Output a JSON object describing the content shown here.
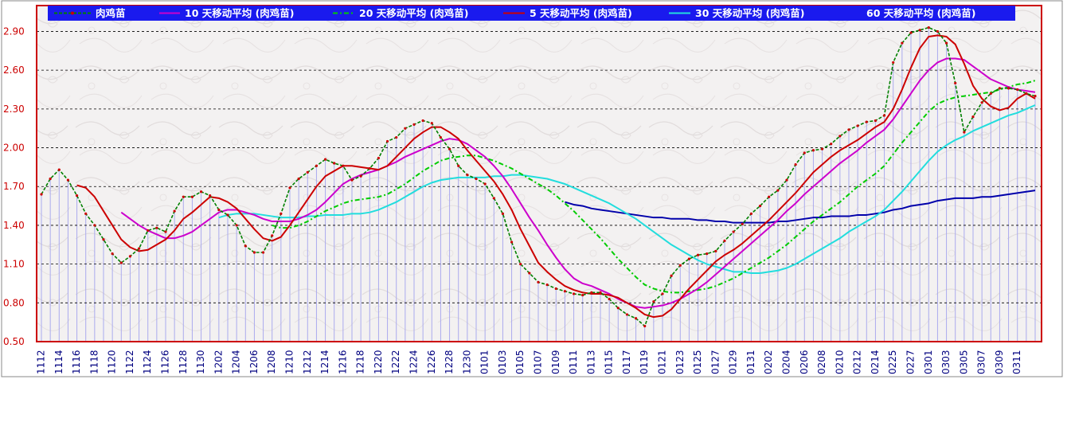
{
  "chart_data": {
    "type": "line",
    "ylim": [
      0.5,
      3.1
    ],
    "yticks": [
      "0.50",
      "0.80",
      "1.10",
      "1.40",
      "1.70",
      "2.00",
      "2.30",
      "2.60",
      "2.90"
    ],
    "grid": true,
    "legend_placement": "top",
    "categories": [
      "1112",
      "1113",
      "1114",
      "1115",
      "1116",
      "1117",
      "1118",
      "1119",
      "1120",
      "1121",
      "1122",
      "1123",
      "1124",
      "1125",
      "1126",
      "1127",
      "1128",
      "1129",
      "1130",
      "1201",
      "1202",
      "1203",
      "1204",
      "1205",
      "1206",
      "1207",
      "1208",
      "1209",
      "1210",
      "1211",
      "1212",
      "1213",
      "1214",
      "1215",
      "1216",
      "1217",
      "1218",
      "1219",
      "1220",
      "1221",
      "1222",
      "1223",
      "1224",
      "1225",
      "1226",
      "1227",
      "1228",
      "1229",
      "1230",
      "1231",
      "0101",
      "0102",
      "0103",
      "0104",
      "0105",
      "0106",
      "0107",
      "0108",
      "0109",
      "0110",
      "0111",
      "0112",
      "0113",
      "0114",
      "0115",
      "0116",
      "0117",
      "0118",
      "0119",
      "0120",
      "0121",
      "0122",
      "0123",
      "0124",
      "0125",
      "0126",
      "0127",
      "0128",
      "0129",
      "0130",
      "0131",
      "0201",
      "0202",
      "0203",
      "0204",
      "0205",
      "0206",
      "0207",
      "0208",
      "0209",
      "0210",
      "0211",
      "0212",
      "0213",
      "0214",
      "0224",
      "0225",
      "0226",
      "0227",
      "0228",
      "0301",
      "0302",
      "0303",
      "0304",
      "0305",
      "0306",
      "0307",
      "0308",
      "0309",
      "0310",
      "0311",
      "0312",
      "0313"
    ],
    "xtick_labels": [
      "1112",
      "1114",
      "1116",
      "1118",
      "1120",
      "1122",
      "1124",
      "1126",
      "1128",
      "1130",
      "1202",
      "1204",
      "1206",
      "1208",
      "1210",
      "1212",
      "1214",
      "1216",
      "1218",
      "1220",
      "1222",
      "1224",
      "1226",
      "1228",
      "1230",
      "0101",
      "0103",
      "0105",
      "0107",
      "0109",
      "0111",
      "0113",
      "0115",
      "0117",
      "0119",
      "0121",
      "0123",
      "0125",
      "0127",
      "0129",
      "0131",
      "0202",
      "0204",
      "0206",
      "0208",
      "0210",
      "0212",
      "0214",
      "0225",
      "0227",
      "0301",
      "0303",
      "0305",
      "0307",
      "0309",
      "0311"
    ],
    "series": [
      {
        "name": "肉鸡苗",
        "color": "#008000",
        "marker": true,
        "dash": "4,2",
        "values": [
          1.64,
          1.76,
          1.83,
          1.75,
          1.63,
          1.49,
          1.4,
          1.29,
          1.18,
          1.11,
          1.16,
          1.22,
          1.36,
          1.38,
          1.35,
          1.51,
          1.62,
          1.62,
          1.66,
          1.63,
          1.52,
          1.48,
          1.4,
          1.24,
          1.19,
          1.19,
          1.32,
          1.49,
          1.69,
          1.76,
          1.81,
          1.86,
          1.91,
          1.88,
          1.86,
          1.75,
          1.78,
          1.84,
          1.92,
          2.05,
          2.08,
          2.15,
          2.18,
          2.21,
          2.19,
          2.08,
          1.99,
          1.86,
          1.79,
          1.76,
          1.72,
          1.61,
          1.49,
          1.27,
          1.1,
          1.03,
          0.96,
          0.94,
          0.91,
          0.89,
          0.87,
          0.86,
          0.88,
          0.88,
          0.83,
          0.76,
          0.71,
          0.68,
          0.62,
          0.81,
          0.87,
          1.01,
          1.09,
          1.14,
          1.17,
          1.18,
          1.2,
          1.28,
          1.35,
          1.41,
          1.49,
          1.55,
          1.62,
          1.67,
          1.75,
          1.87,
          1.96,
          1.98,
          1.99,
          2.03,
          2.09,
          2.14,
          2.17,
          2.2,
          2.21,
          2.25,
          2.66,
          2.81,
          2.89,
          2.91,
          2.93,
          2.9,
          2.81,
          2.5,
          2.12,
          2.24,
          2.35,
          2.42,
          2.46,
          2.46,
          2.45,
          2.42,
          2.4
        ]
      },
      {
        "name": "10 天移动平均 (肉鸡苗)",
        "color": "#cc00cc",
        "values": [
          null,
          null,
          null,
          null,
          null,
          null,
          null,
          null,
          null,
          1.5,
          1.45,
          1.4,
          1.36,
          1.33,
          1.3,
          1.3,
          1.32,
          1.35,
          1.4,
          1.45,
          1.5,
          1.52,
          1.52,
          1.5,
          1.48,
          1.45,
          1.43,
          1.43,
          1.43,
          1.45,
          1.48,
          1.52,
          1.58,
          1.65,
          1.72,
          1.76,
          1.79,
          1.81,
          1.83,
          1.86,
          1.89,
          1.93,
          1.96,
          1.99,
          2.02,
          2.05,
          2.07,
          2.06,
          2.03,
          1.98,
          1.93,
          1.86,
          1.78,
          1.68,
          1.57,
          1.46,
          1.36,
          1.25,
          1.15,
          1.06,
          0.99,
          0.95,
          0.93,
          0.9,
          0.87,
          0.83,
          0.8,
          0.77,
          0.76,
          0.77,
          0.78,
          0.8,
          0.83,
          0.87,
          0.91,
          0.96,
          1.02,
          1.08,
          1.14,
          1.2,
          1.26,
          1.32,
          1.38,
          1.44,
          1.51,
          1.57,
          1.64,
          1.7,
          1.76,
          1.82,
          1.88,
          1.93,
          1.98,
          2.04,
          2.09,
          2.14,
          2.22,
          2.32,
          2.42,
          2.52,
          2.6,
          2.66,
          2.69,
          2.69,
          2.68,
          2.63,
          2.58,
          2.53,
          2.5,
          2.47,
          2.45,
          2.44,
          2.43
        ]
      },
      {
        "name": "20 天移动平均 (肉鸡苗)",
        "color": "#00cc00",
        "dash": "6,3,2,3",
        "values": [
          null,
          null,
          null,
          null,
          null,
          null,
          null,
          null,
          null,
          null,
          null,
          null,
          null,
          null,
          null,
          null,
          null,
          null,
          null,
          null,
          null,
          null,
          null,
          null,
          null,
          null,
          1.4,
          1.38,
          1.38,
          1.4,
          1.43,
          1.47,
          1.51,
          1.54,
          1.57,
          1.59,
          1.6,
          1.61,
          1.62,
          1.64,
          1.68,
          1.72,
          1.77,
          1.82,
          1.86,
          1.9,
          1.92,
          1.93,
          1.94,
          1.94,
          1.92,
          1.9,
          1.87,
          1.84,
          1.8,
          1.76,
          1.72,
          1.68,
          1.63,
          1.57,
          1.51,
          1.44,
          1.37,
          1.3,
          1.22,
          1.14,
          1.07,
          1.0,
          0.94,
          0.91,
          0.89,
          0.88,
          0.88,
          0.89,
          0.9,
          0.91,
          0.93,
          0.96,
          0.99,
          1.03,
          1.07,
          1.11,
          1.15,
          1.2,
          1.25,
          1.31,
          1.37,
          1.43,
          1.48,
          1.53,
          1.58,
          1.64,
          1.7,
          1.75,
          1.8,
          1.86,
          1.95,
          2.04,
          2.12,
          2.2,
          2.28,
          2.34,
          2.37,
          2.39,
          2.4,
          2.41,
          2.42,
          2.43,
          2.45,
          2.47,
          2.49,
          2.5,
          2.52
        ]
      },
      {
        "name": "5 天移动平均 (肉鸡苗)",
        "color": "#cc0000",
        "values": [
          null,
          null,
          null,
          null,
          1.71,
          1.69,
          1.62,
          1.51,
          1.4,
          1.29,
          1.23,
          1.2,
          1.21,
          1.25,
          1.29,
          1.36,
          1.45,
          1.5,
          1.56,
          1.62,
          1.61,
          1.58,
          1.53,
          1.45,
          1.37,
          1.3,
          1.28,
          1.31,
          1.4,
          1.5,
          1.6,
          1.7,
          1.78,
          1.82,
          1.86,
          1.86,
          1.85,
          1.84,
          1.83,
          1.86,
          1.93,
          2.0,
          2.07,
          2.12,
          2.16,
          2.16,
          2.12,
          2.07,
          1.98,
          1.9,
          1.82,
          1.74,
          1.64,
          1.52,
          1.37,
          1.24,
          1.11,
          1.04,
          0.98,
          0.93,
          0.9,
          0.88,
          0.87,
          0.87,
          0.86,
          0.84,
          0.8,
          0.76,
          0.71,
          0.69,
          0.7,
          0.75,
          0.83,
          0.91,
          0.98,
          1.05,
          1.12,
          1.17,
          1.21,
          1.26,
          1.32,
          1.38,
          1.44,
          1.51,
          1.58,
          1.65,
          1.73,
          1.81,
          1.87,
          1.93,
          1.98,
          2.02,
          2.06,
          2.11,
          2.16,
          2.2,
          2.3,
          2.45,
          2.62,
          2.77,
          2.86,
          2.87,
          2.86,
          2.8,
          2.65,
          2.48,
          2.38,
          2.32,
          2.29,
          2.31,
          2.38,
          2.42,
          2.38
        ]
      },
      {
        "name": "30 天移动平均 (肉鸡苗)",
        "color": "#22dddd",
        "values": [
          null,
          null,
          null,
          null,
          null,
          null,
          null,
          null,
          null,
          null,
          null,
          null,
          null,
          null,
          null,
          null,
          null,
          null,
          null,
          null,
          1.46,
          1.48,
          1.49,
          1.49,
          1.49,
          1.48,
          1.47,
          1.46,
          1.46,
          1.46,
          1.47,
          1.47,
          1.48,
          1.48,
          1.48,
          1.49,
          1.49,
          1.5,
          1.52,
          1.55,
          1.58,
          1.62,
          1.66,
          1.7,
          1.73,
          1.75,
          1.76,
          1.77,
          1.77,
          1.77,
          1.77,
          1.78,
          1.78,
          1.79,
          1.79,
          1.78,
          1.77,
          1.76,
          1.74,
          1.72,
          1.69,
          1.66,
          1.63,
          1.6,
          1.57,
          1.53,
          1.49,
          1.45,
          1.4,
          1.35,
          1.3,
          1.25,
          1.21,
          1.17,
          1.13,
          1.1,
          1.08,
          1.06,
          1.04,
          1.04,
          1.03,
          1.03,
          1.04,
          1.05,
          1.07,
          1.1,
          1.14,
          1.18,
          1.22,
          1.26,
          1.3,
          1.35,
          1.39,
          1.43,
          1.47,
          1.52,
          1.59,
          1.66,
          1.74,
          1.82,
          1.9,
          1.97,
          2.02,
          2.06,
          2.09,
          2.13,
          2.16,
          2.19,
          2.22,
          2.25,
          2.27,
          2.3,
          2.33
        ]
      },
      {
        "name": "60 天移动平均 (肉鸡苗)",
        "color": "#0000aa",
        "values": [
          null,
          null,
          null,
          null,
          null,
          null,
          null,
          null,
          null,
          null,
          null,
          null,
          null,
          null,
          null,
          null,
          null,
          null,
          null,
          null,
          null,
          null,
          null,
          null,
          null,
          null,
          null,
          null,
          null,
          null,
          null,
          null,
          null,
          null,
          null,
          null,
          null,
          null,
          null,
          null,
          null,
          null,
          null,
          null,
          null,
          null,
          null,
          null,
          null,
          null,
          null,
          null,
          null,
          null,
          null,
          null,
          null,
          null,
          null,
          1.58,
          1.56,
          1.55,
          1.53,
          1.52,
          1.51,
          1.5,
          1.49,
          1.48,
          1.47,
          1.46,
          1.46,
          1.45,
          1.45,
          1.45,
          1.44,
          1.44,
          1.43,
          1.43,
          1.42,
          1.42,
          1.42,
          1.42,
          1.42,
          1.43,
          1.43,
          1.44,
          1.45,
          1.46,
          1.46,
          1.47,
          1.47,
          1.47,
          1.48,
          1.48,
          1.49,
          1.5,
          1.52,
          1.53,
          1.55,
          1.56,
          1.57,
          1.59,
          1.6,
          1.61,
          1.61,
          1.61,
          1.62,
          1.62,
          1.63,
          1.64,
          1.65,
          1.66,
          1.67
        ]
      }
    ]
  },
  "colors": {
    "legend_bg": "#1a1aee",
    "legend_text": "#ffffff",
    "frame": "#cc0000",
    "volume_bar": "#aaaaee",
    "grid": "#000000",
    "ytick_text": "#cc0000",
    "xtick_text": "#000080"
  }
}
